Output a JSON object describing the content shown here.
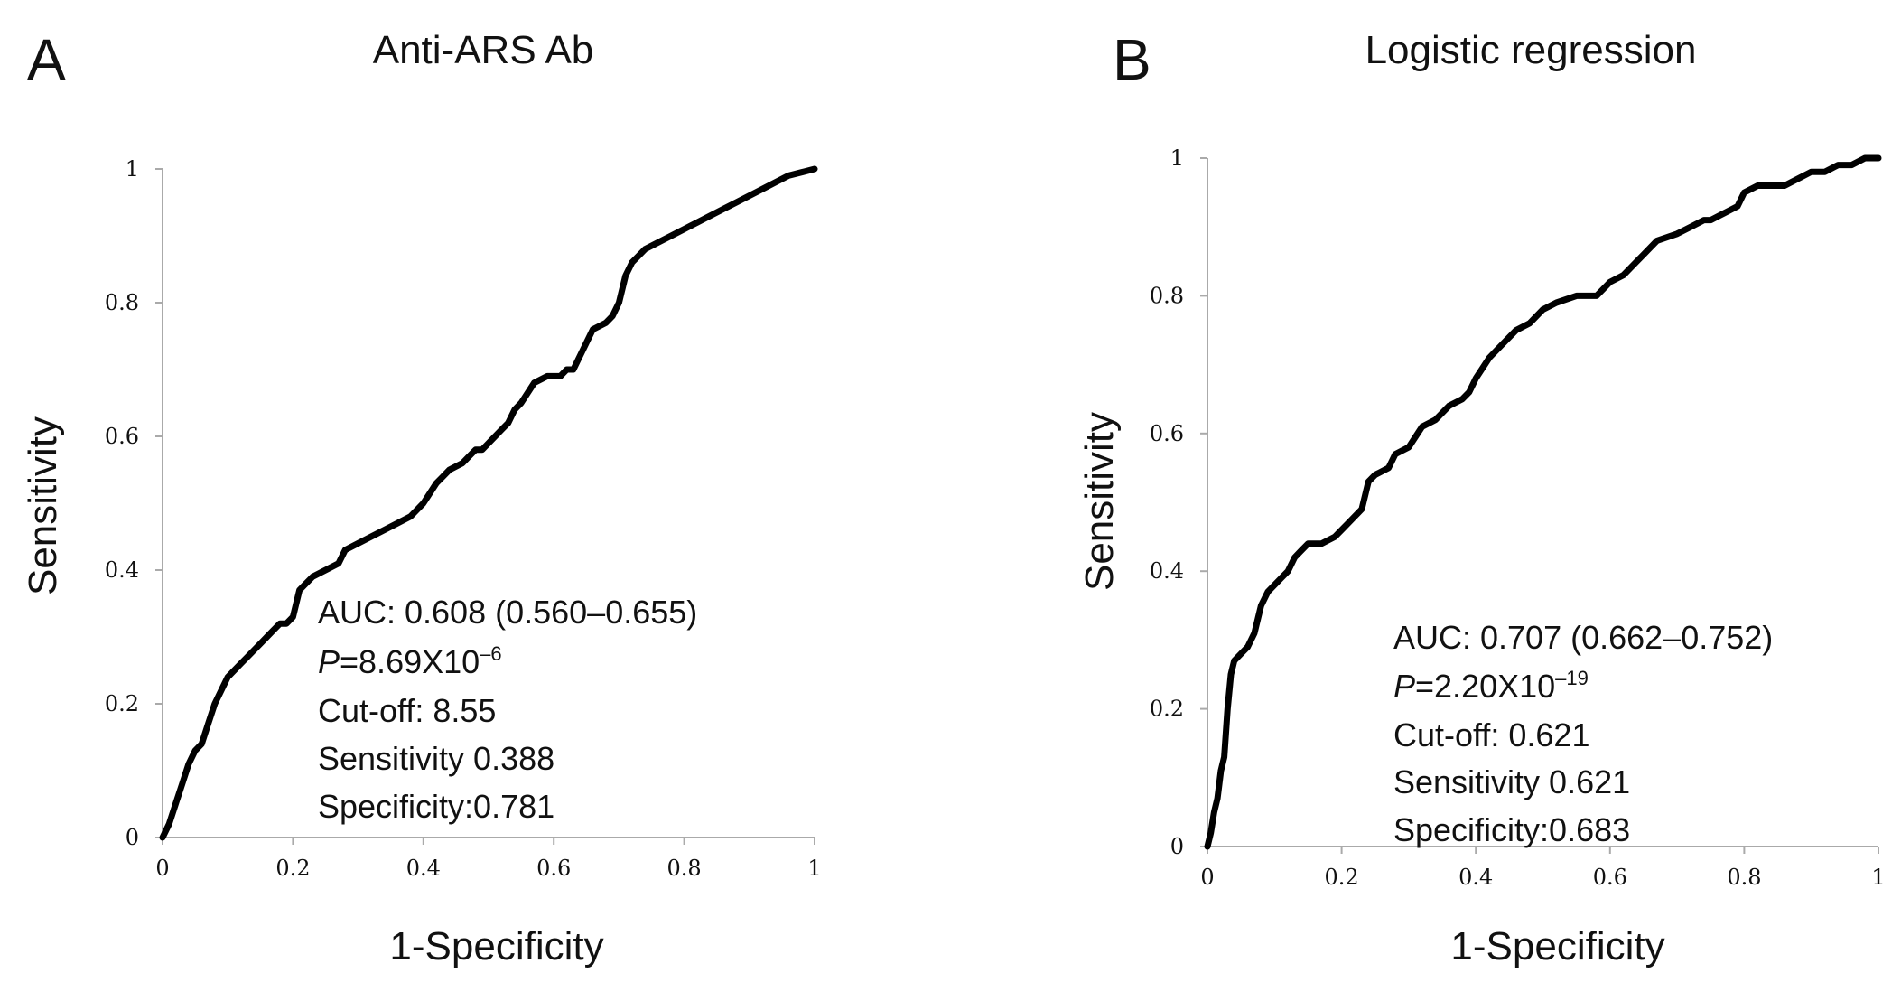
{
  "chart_data": [
    {
      "type": "line",
      "panel_label": "A",
      "title": "Anti-ARS Ab",
      "xlabel": "1-Specificity",
      "ylabel": "Sensitivity",
      "xlim": [
        0,
        1
      ],
      "ylim": [
        0,
        1
      ],
      "x_ticks": [
        "0",
        "0.2",
        "0.4",
        "0.6",
        "0.8",
        "1"
      ],
      "y_ticks": [
        "0",
        "0.2",
        "0.4",
        "0.6",
        "0.8",
        "1"
      ],
      "series": [
        {
          "name": "ROC",
          "color": "#000000",
          "x": [
            0,
            0.01,
            0.02,
            0.03,
            0.04,
            0.05,
            0.06,
            0.07,
            0.08,
            0.09,
            0.1,
            0.11,
            0.12,
            0.13,
            0.14,
            0.15,
            0.16,
            0.17,
            0.18,
            0.19,
            0.2,
            0.21,
            0.22,
            0.23,
            0.25,
            0.27,
            0.28,
            0.3,
            0.32,
            0.34,
            0.36,
            0.38,
            0.39,
            0.4,
            0.42,
            0.43,
            0.44,
            0.46,
            0.47,
            0.48,
            0.49,
            0.5,
            0.52,
            0.53,
            0.54,
            0.55,
            0.57,
            0.59,
            0.61,
            0.62,
            0.63,
            0.65,
            0.66,
            0.68,
            0.69,
            0.7,
            0.71,
            0.72,
            0.73,
            0.74,
            0.76,
            0.78,
            0.8,
            0.82,
            0.84,
            0.86,
            0.88,
            0.9,
            0.92,
            0.94,
            0.96,
            0.98,
            1.0
          ],
          "y": [
            0,
            0.02,
            0.05,
            0.08,
            0.11,
            0.13,
            0.14,
            0.17,
            0.2,
            0.22,
            0.24,
            0.25,
            0.26,
            0.27,
            0.28,
            0.29,
            0.3,
            0.31,
            0.32,
            0.32,
            0.33,
            0.37,
            0.38,
            0.39,
            0.4,
            0.41,
            0.43,
            0.44,
            0.45,
            0.46,
            0.47,
            0.48,
            0.49,
            0.5,
            0.53,
            0.54,
            0.55,
            0.56,
            0.57,
            0.58,
            0.58,
            0.59,
            0.61,
            0.62,
            0.64,
            0.65,
            0.68,
            0.69,
            0.69,
            0.7,
            0.7,
            0.74,
            0.76,
            0.77,
            0.78,
            0.8,
            0.84,
            0.86,
            0.87,
            0.88,
            0.89,
            0.9,
            0.91,
            0.92,
            0.93,
            0.94,
            0.95,
            0.96,
            0.97,
            0.98,
            0.99,
            0.995,
            1.0
          ]
        }
      ],
      "annotations": {
        "auc": "AUC: 0.608 (0.560–0.655)",
        "p_label": "P",
        "p_value": "=8.69X10",
        "p_exponent": "–6",
        "cutoff": "Cut-off: 8.55",
        "sensitivity": "Sensitivity 0.388",
        "specificity": "Specificity:0.781"
      }
    },
    {
      "type": "line",
      "panel_label": "B",
      "title": "Logistic regression",
      "xlabel": "1-Specificity",
      "ylabel": "Sensitivity",
      "xlim": [
        0,
        1
      ],
      "ylim": [
        0,
        1
      ],
      "x_ticks": [
        "0",
        "0.2",
        "0.4",
        "0.6",
        "0.8",
        "1"
      ],
      "y_ticks": [
        "0",
        "0.2",
        "0.4",
        "0.6",
        "0.8",
        "1"
      ],
      "series": [
        {
          "name": "ROC",
          "color": "#000000",
          "x": [
            0,
            0.005,
            0.01,
            0.015,
            0.02,
            0.025,
            0.03,
            0.035,
            0.04,
            0.05,
            0.06,
            0.07,
            0.08,
            0.09,
            0.1,
            0.11,
            0.12,
            0.13,
            0.14,
            0.15,
            0.17,
            0.19,
            0.2,
            0.21,
            0.22,
            0.23,
            0.24,
            0.25,
            0.27,
            0.28,
            0.3,
            0.32,
            0.34,
            0.36,
            0.38,
            0.39,
            0.4,
            0.42,
            0.44,
            0.46,
            0.48,
            0.5,
            0.52,
            0.55,
            0.58,
            0.6,
            0.62,
            0.64,
            0.65,
            0.67,
            0.7,
            0.72,
            0.74,
            0.75,
            0.77,
            0.79,
            0.8,
            0.82,
            0.84,
            0.86,
            0.88,
            0.9,
            0.92,
            0.94,
            0.96,
            0.98,
            1.0
          ],
          "y": [
            0,
            0.02,
            0.05,
            0.07,
            0.11,
            0.13,
            0.2,
            0.25,
            0.27,
            0.28,
            0.29,
            0.31,
            0.35,
            0.37,
            0.38,
            0.39,
            0.4,
            0.42,
            0.43,
            0.44,
            0.44,
            0.45,
            0.46,
            0.47,
            0.48,
            0.49,
            0.53,
            0.54,
            0.55,
            0.57,
            0.58,
            0.61,
            0.62,
            0.64,
            0.65,
            0.66,
            0.68,
            0.71,
            0.73,
            0.75,
            0.76,
            0.78,
            0.79,
            0.8,
            0.8,
            0.82,
            0.83,
            0.85,
            0.86,
            0.88,
            0.89,
            0.9,
            0.91,
            0.91,
            0.92,
            0.93,
            0.95,
            0.96,
            0.96,
            0.96,
            0.97,
            0.98,
            0.98,
            0.99,
            0.99,
            1.0,
            1.0
          ]
        }
      ],
      "annotations": {
        "auc": "AUC: 0.707 (0.662–0.752)",
        "p_label": "P",
        "p_value": "=2.20X10",
        "p_exponent": "–19",
        "cutoff": "Cut-off: 0.621",
        "sensitivity": "Sensitivity 0.621",
        "specificity": "Specificity:0.683"
      }
    }
  ]
}
